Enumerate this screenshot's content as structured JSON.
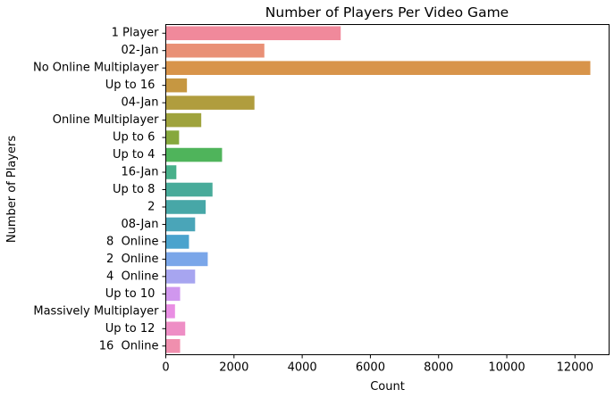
{
  "chart_data": {
    "type": "bar",
    "orientation": "horizontal",
    "title": "Number of Players Per Video Game",
    "xlabel": "Count",
    "ylabel": "Number of Players",
    "xlim": [
      0,
      13000
    ],
    "xticks": [
      0,
      2000,
      4000,
      6000,
      8000,
      10000,
      12000
    ],
    "grid": false,
    "categories": [
      "1 Player",
      "02-Jan",
      "No Online Multiplayer",
      "Up to 16 ",
      "04-Jan",
      "Online Multiplayer",
      "Up to 6 ",
      "Up to 4 ",
      "16-Jan",
      "Up to 8 ",
      "2 ",
      "08-Jan",
      "8  Online",
      "2  Online",
      "4  Online",
      "Up to 10 ",
      "Massively Multiplayer",
      "Up to 12 ",
      "16  Online"
    ],
    "values": [
      5130,
      2890,
      12450,
      620,
      2600,
      1040,
      390,
      1650,
      310,
      1370,
      1170,
      860,
      680,
      1230,
      860,
      420,
      270,
      570,
      420
    ],
    "colors": [
      "#f0899b",
      "#e99076",
      "#d8944a",
      "#c69741",
      "#b09d3e",
      "#9fa33d",
      "#86a83d",
      "#4fb45b",
      "#47b08a",
      "#48ab9a",
      "#47a7a7",
      "#4aa5b8",
      "#4aa3cd",
      "#7aa6e9",
      "#a7a5f0",
      "#d097ee",
      "#e98ee3",
      "#ee8ec5",
      "#f08fae"
    ]
  }
}
